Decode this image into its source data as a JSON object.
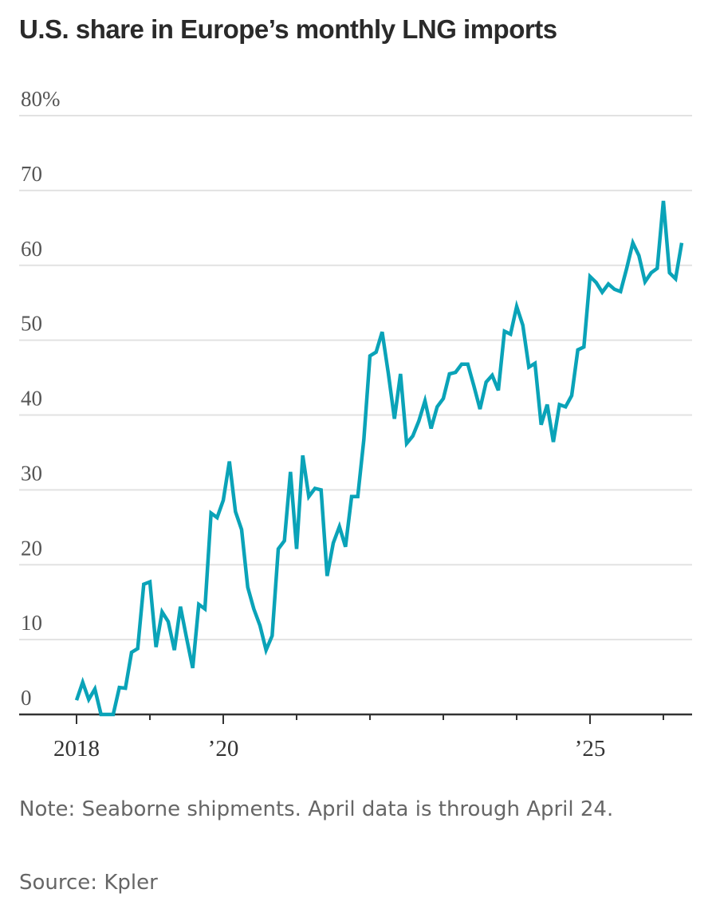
{
  "chart_data": {
    "type": "line",
    "title": "U.S. share in Europe’s monthly LNG imports",
    "xlabel": "",
    "ylabel": "",
    "ylim": [
      0,
      80
    ],
    "y_ticks": [
      0,
      10,
      20,
      30,
      40,
      50,
      60,
      70,
      80
    ],
    "y_tick_labels": [
      "0",
      "10",
      "20",
      "30",
      "40",
      "50",
      "60",
      "70",
      "80%"
    ],
    "x_start": "2018-01",
    "x_frequency": "monthly",
    "x_tick_years": [
      2018,
      2019,
      2020,
      2021,
      2022,
      2023,
      2024,
      2025,
      2026
    ],
    "x_tick_labels": {
      "2018": "2018",
      "2020": "’20",
      "2025": "’25"
    },
    "grid": true,
    "series": [
      {
        "name": "U.S. share",
        "color": "#0aa3b8",
        "values": [
          1.9,
          4.3,
          2.0,
          3.4,
          0.0,
          0.0,
          0.0,
          3.6,
          3.5,
          8.3,
          8.8,
          17.4,
          17.7,
          9.0,
          13.7,
          12.4,
          8.6,
          14.4,
          10.2,
          6.2,
          14.7,
          14.1,
          26.9,
          26.3,
          28.6,
          33.8,
          27.1,
          24.7,
          17.0,
          14.1,
          11.9,
          8.6,
          10.5,
          22.1,
          23.2,
          32.4,
          22.1,
          34.6,
          29.1,
          30.2,
          30.0,
          18.5,
          22.9,
          25.1,
          22.4,
          29.1,
          29.1,
          36.7,
          47.9,
          48.4,
          51.1,
          45.6,
          39.5,
          45.5,
          36.2,
          37.2,
          39.2,
          41.9,
          38.2,
          41.1,
          42.2,
          45.5,
          45.7,
          46.8,
          46.8,
          43.9,
          40.8,
          44.4,
          45.3,
          43.3,
          51.2,
          50.8,
          54.5,
          52.0,
          46.4,
          46.9,
          38.7,
          41.4,
          36.4,
          41.4,
          41.1,
          42.6,
          48.7,
          49.1,
          58.5,
          57.7,
          56.4,
          57.5,
          56.8,
          56.5,
          59.6,
          63.0,
          61.3,
          57.8,
          59.0,
          59.6,
          68.6,
          59.0,
          58.2,
          63.0
        ]
      }
    ]
  },
  "note": "Note: Seaborne shipments. April data is through April 24.",
  "source": "Source: Kpler"
}
